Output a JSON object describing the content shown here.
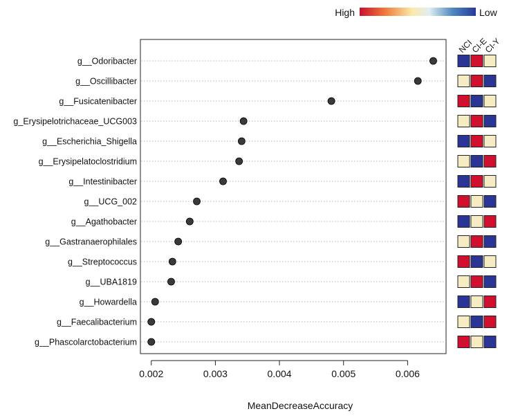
{
  "chart_data": {
    "type": "scatter",
    "xlabel": "MeanDecreaseAccuracy",
    "xlim": [
      0.00183,
      0.0066
    ],
    "xticks": [
      0.002,
      0.003,
      0.004,
      0.005,
      0.006
    ],
    "xtick_labels": [
      "0.002",
      "0.003",
      "0.004",
      "0.005",
      "0.006"
    ],
    "grid": "horizontal-dotted",
    "categories": [
      "g__Odoribacter",
      "g__Oscillibacter",
      "g__Fusicatenibacter",
      "g_Erysipelotrichaceae_UCG003",
      "g__Escherichia_Shigella",
      "g__Erysipelatoclostridium",
      "g__Intestinibacter",
      "g__UCG_002",
      "g__Agathobacter",
      "g__Gastranaerophilales",
      "g__Streptococcus",
      "g__UBA1819",
      "g__Howardella",
      "g__Faecalibacterium",
      "g__Phascolarctobacterium"
    ],
    "values": [
      0.0064,
      0.00616,
      0.00481,
      0.00344,
      0.00341,
      0.00337,
      0.00312,
      0.00271,
      0.0026,
      0.00242,
      0.00233,
      0.00231,
      0.00206,
      0.002,
      0.002
    ],
    "color_scale": {
      "high_label": "High",
      "low_label": "Low",
      "stops": [
        "#c8102e",
        "#f7f0c8",
        "#2b3a9e"
      ]
    },
    "heatmap": {
      "columns": [
        "NCI",
        "CI-E",
        "CI-Y"
      ],
      "levels": [
        [
          "low",
          "high",
          "mid"
        ],
        [
          "mid",
          "high",
          "low"
        ],
        [
          "high",
          "low",
          "mid"
        ],
        [
          "mid",
          "high",
          "low"
        ],
        [
          "low",
          "high",
          "mid"
        ],
        [
          "mid",
          "low",
          "high"
        ],
        [
          "low",
          "high",
          "mid"
        ],
        [
          "high",
          "mid",
          "low"
        ],
        [
          "low",
          "mid",
          "high"
        ],
        [
          "mid",
          "high",
          "low"
        ],
        [
          "high",
          "low",
          "mid"
        ],
        [
          "mid",
          "high",
          "low"
        ],
        [
          "low",
          "mid",
          "high"
        ],
        [
          "mid",
          "low",
          "high"
        ],
        [
          "high",
          "mid",
          "low"
        ]
      ],
      "level_colors": {
        "high": "#d1102f",
        "mid": "#f6ecc4",
        "low": "#2a3596"
      }
    },
    "point_color": "#3a3a3a"
  }
}
